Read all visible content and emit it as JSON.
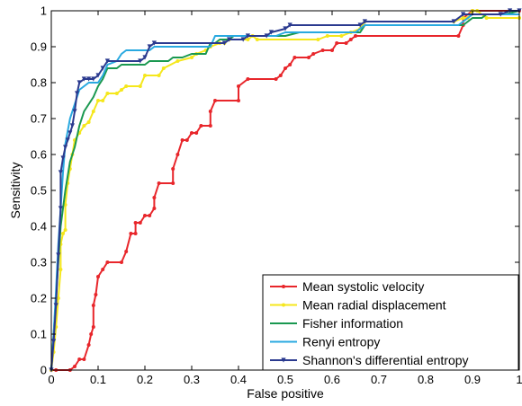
{
  "chart_data": {
    "type": "line",
    "title": "",
    "xlabel": "False positive",
    "ylabel": "Sensitivity",
    "xlim": [
      0,
      1
    ],
    "ylim": [
      0,
      1
    ],
    "xticks": [
      0,
      0.1,
      0.2,
      0.3,
      0.4,
      0.5,
      0.6,
      0.7,
      0.8,
      0.9,
      1
    ],
    "yticks": [
      0,
      0.1,
      0.2,
      0.3,
      0.4,
      0.5,
      0.6,
      0.7,
      0.8,
      0.9,
      1
    ],
    "xtick_labels": [
      "0",
      "0.1",
      "0.2",
      "0.3",
      "0.4",
      "0.5",
      "0.6",
      "0.7",
      "0.8",
      "0.9",
      "1"
    ],
    "ytick_labels": [
      "0",
      "0.1",
      "0.2",
      "0.3",
      "0.4",
      "0.5",
      "0.6",
      "0.7",
      "0.8",
      "0.9",
      "1"
    ],
    "grid": false,
    "legend_position": "bottom-right",
    "series": [
      {
        "name": "Mean systolic velocity",
        "color": "#e8262b",
        "marker": "dot",
        "points": [
          [
            0,
            0
          ],
          [
            0.01,
            0
          ],
          [
            0.04,
            0
          ],
          [
            0.05,
            0.01
          ],
          [
            0.06,
            0.03
          ],
          [
            0.07,
            0.03
          ],
          [
            0.08,
            0.07
          ],
          [
            0.085,
            0.1
          ],
          [
            0.09,
            0.12
          ],
          [
            0.09,
            0.18
          ],
          [
            0.095,
            0.21
          ],
          [
            0.1,
            0.26
          ],
          [
            0.11,
            0.28
          ],
          [
            0.12,
            0.3
          ],
          [
            0.15,
            0.3
          ],
          [
            0.16,
            0.33
          ],
          [
            0.17,
            0.38
          ],
          [
            0.18,
            0.38
          ],
          [
            0.18,
            0.41
          ],
          [
            0.19,
            0.41
          ],
          [
            0.2,
            0.43
          ],
          [
            0.21,
            0.43
          ],
          [
            0.22,
            0.45
          ],
          [
            0.22,
            0.48
          ],
          [
            0.23,
            0.52
          ],
          [
            0.26,
            0.52
          ],
          [
            0.26,
            0.56
          ],
          [
            0.27,
            0.6
          ],
          [
            0.28,
            0.64
          ],
          [
            0.29,
            0.64
          ],
          [
            0.3,
            0.66
          ],
          [
            0.31,
            0.66
          ],
          [
            0.32,
            0.68
          ],
          [
            0.34,
            0.68
          ],
          [
            0.34,
            0.72
          ],
          [
            0.35,
            0.75
          ],
          [
            0.4,
            0.75
          ],
          [
            0.4,
            0.79
          ],
          [
            0.42,
            0.81
          ],
          [
            0.48,
            0.81
          ],
          [
            0.49,
            0.82
          ],
          [
            0.5,
            0.84
          ],
          [
            0.51,
            0.85
          ],
          [
            0.52,
            0.87
          ],
          [
            0.55,
            0.87
          ],
          [
            0.56,
            0.88
          ],
          [
            0.58,
            0.89
          ],
          [
            0.6,
            0.89
          ],
          [
            0.61,
            0.91
          ],
          [
            0.63,
            0.91
          ],
          [
            0.64,
            0.92
          ],
          [
            0.65,
            0.93
          ],
          [
            0.87,
            0.93
          ],
          [
            0.88,
            0.96
          ],
          [
            0.88,
            0.98
          ],
          [
            0.9,
            1
          ],
          [
            1,
            1
          ]
        ]
      },
      {
        "name": "Mean radial displacement",
        "color": "#f5e71c",
        "marker": "dot",
        "points": [
          [
            0,
            0
          ],
          [
            0.005,
            0.05
          ],
          [
            0.01,
            0.12
          ],
          [
            0.015,
            0.2
          ],
          [
            0.02,
            0.28
          ],
          [
            0.02,
            0.35
          ],
          [
            0.025,
            0.38
          ],
          [
            0.03,
            0.39
          ],
          [
            0.03,
            0.46
          ],
          [
            0.035,
            0.52
          ],
          [
            0.04,
            0.56
          ],
          [
            0.045,
            0.6
          ],
          [
            0.05,
            0.64
          ],
          [
            0.06,
            0.66
          ],
          [
            0.07,
            0.68
          ],
          [
            0.08,
            0.69
          ],
          [
            0.09,
            0.72
          ],
          [
            0.1,
            0.75
          ],
          [
            0.11,
            0.75
          ],
          [
            0.12,
            0.77
          ],
          [
            0.14,
            0.77
          ],
          [
            0.15,
            0.78
          ],
          [
            0.16,
            0.79
          ],
          [
            0.19,
            0.79
          ],
          [
            0.2,
            0.82
          ],
          [
            0.23,
            0.82
          ],
          [
            0.24,
            0.84
          ],
          [
            0.27,
            0.86
          ],
          [
            0.3,
            0.87
          ],
          [
            0.31,
            0.88
          ],
          [
            0.33,
            0.89
          ],
          [
            0.34,
            0.9
          ],
          [
            0.36,
            0.91
          ],
          [
            0.37,
            0.91
          ],
          [
            0.38,
            0.92
          ],
          [
            0.42,
            0.92
          ],
          [
            0.43,
            0.93
          ],
          [
            0.44,
            0.92
          ],
          [
            0.57,
            0.92
          ],
          [
            0.59,
            0.93
          ],
          [
            0.62,
            0.93
          ],
          [
            0.64,
            0.94
          ],
          [
            0.66,
            0.95
          ],
          [
            0.67,
            0.97
          ],
          [
            0.86,
            0.97
          ],
          [
            0.88,
            0.98
          ],
          [
            0.89,
            0.98
          ],
          [
            0.9,
            1
          ],
          [
            0.91,
            1
          ],
          [
            0.93,
            0.98
          ],
          [
            1,
            0.98
          ]
        ]
      },
      {
        "name": "Fisher information",
        "color": "#1a9850",
        "marker": "none",
        "points": [
          [
            0,
            0
          ],
          [
            0.005,
            0.1
          ],
          [
            0.01,
            0.2
          ],
          [
            0.015,
            0.3
          ],
          [
            0.02,
            0.4
          ],
          [
            0.03,
            0.5
          ],
          [
            0.04,
            0.58
          ],
          [
            0.05,
            0.62
          ],
          [
            0.06,
            0.68
          ],
          [
            0.07,
            0.72
          ],
          [
            0.08,
            0.74
          ],
          [
            0.09,
            0.76
          ],
          [
            0.1,
            0.79
          ],
          [
            0.11,
            0.81
          ],
          [
            0.12,
            0.84
          ],
          [
            0.14,
            0.84
          ],
          [
            0.15,
            0.85
          ],
          [
            0.2,
            0.85
          ],
          [
            0.21,
            0.86
          ],
          [
            0.25,
            0.86
          ],
          [
            0.26,
            0.87
          ],
          [
            0.28,
            0.87
          ],
          [
            0.3,
            0.88
          ],
          [
            0.33,
            0.88
          ],
          [
            0.34,
            0.91
          ],
          [
            0.35,
            0.91
          ],
          [
            0.36,
            0.92
          ],
          [
            0.38,
            0.92
          ],
          [
            0.39,
            0.93
          ],
          [
            0.5,
            0.93
          ],
          [
            0.53,
            0.94
          ],
          [
            0.66,
            0.94
          ],
          [
            0.67,
            0.96
          ],
          [
            0.88,
            0.96
          ],
          [
            0.9,
            0.98
          ],
          [
            0.92,
            0.98
          ],
          [
            0.93,
            0.99
          ],
          [
            0.97,
            0.99
          ],
          [
            1,
            1
          ]
        ]
      },
      {
        "name": "Renyi entropy",
        "color": "#29a9e0",
        "marker": "none",
        "points": [
          [
            0,
            0
          ],
          [
            0.005,
            0.1
          ],
          [
            0.01,
            0.22
          ],
          [
            0.015,
            0.35
          ],
          [
            0.02,
            0.45
          ],
          [
            0.025,
            0.55
          ],
          [
            0.03,
            0.63
          ],
          [
            0.04,
            0.7
          ],
          [
            0.05,
            0.74
          ],
          [
            0.06,
            0.78
          ],
          [
            0.07,
            0.79
          ],
          [
            0.08,
            0.8
          ],
          [
            0.1,
            0.8
          ],
          [
            0.11,
            0.82
          ],
          [
            0.12,
            0.85
          ],
          [
            0.14,
            0.86
          ],
          [
            0.15,
            0.88
          ],
          [
            0.16,
            0.89
          ],
          [
            0.21,
            0.89
          ],
          [
            0.22,
            0.9
          ],
          [
            0.34,
            0.9
          ],
          [
            0.35,
            0.93
          ],
          [
            0.48,
            0.93
          ],
          [
            0.5,
            0.94
          ],
          [
            0.65,
            0.94
          ],
          [
            0.67,
            0.96
          ],
          [
            0.87,
            0.96
          ],
          [
            0.9,
            0.99
          ],
          [
            1,
            0.99
          ]
        ]
      },
      {
        "name": "Shannon's differential entropy",
        "color": "#2b3a8f",
        "marker": "triangle",
        "points": [
          [
            0,
            0
          ],
          [
            0.005,
            0.08
          ],
          [
            0.01,
            0.18
          ],
          [
            0.015,
            0.32
          ],
          [
            0.02,
            0.45
          ],
          [
            0.02,
            0.55
          ],
          [
            0.025,
            0.59
          ],
          [
            0.03,
            0.62
          ],
          [
            0.035,
            0.64
          ],
          [
            0.04,
            0.66
          ],
          [
            0.045,
            0.68
          ],
          [
            0.05,
            0.72
          ],
          [
            0.055,
            0.77
          ],
          [
            0.06,
            0.8
          ],
          [
            0.07,
            0.81
          ],
          [
            0.08,
            0.81
          ],
          [
            0.09,
            0.81
          ],
          [
            0.1,
            0.82
          ],
          [
            0.11,
            0.84
          ],
          [
            0.12,
            0.86
          ],
          [
            0.19,
            0.86
          ],
          [
            0.2,
            0.87
          ],
          [
            0.21,
            0.9
          ],
          [
            0.22,
            0.91
          ],
          [
            0.37,
            0.91
          ],
          [
            0.38,
            0.92
          ],
          [
            0.41,
            0.92
          ],
          [
            0.42,
            0.93
          ],
          [
            0.46,
            0.93
          ],
          [
            0.47,
            0.94
          ],
          [
            0.5,
            0.95
          ],
          [
            0.51,
            0.96
          ],
          [
            0.66,
            0.96
          ],
          [
            0.67,
            0.97
          ],
          [
            0.86,
            0.97
          ],
          [
            0.88,
            0.99
          ],
          [
            0.96,
            0.99
          ],
          [
            0.98,
            1
          ],
          [
            1,
            1
          ]
        ]
      }
    ]
  }
}
